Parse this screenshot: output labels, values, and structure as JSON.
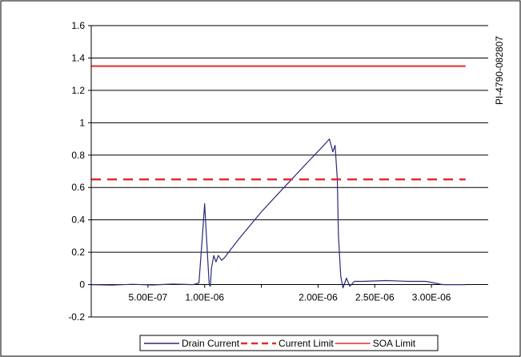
{
  "chart_data": {
    "type": "line",
    "title": "",
    "xlabel": "",
    "ylabel": "",
    "figure_id": "PI-4790-082807",
    "xlim": [
      0,
      3.5e-06
    ],
    "ylim": [
      -0.2,
      1.6
    ],
    "yticks": [
      -0.2,
      0,
      0.2,
      0.4,
      0.6,
      0.8,
      1,
      1.2,
      1.4,
      1.6
    ],
    "ytick_labels": [
      "-0.2",
      "0",
      "0.2",
      "0.4",
      "0.6",
      "0.8",
      "1",
      "1.2",
      "1.4",
      "1.6"
    ],
    "xticks": [
      5e-07,
      1e-06,
      1.5e-06,
      2e-06,
      2.5e-06,
      3e-06
    ],
    "xtick_labels": [
      "5.00E-07",
      "1.00E-06",
      "",
      "2.00E-06",
      "2.50E-06",
      "3.00E-06"
    ],
    "grid": "horizontal",
    "legend_position": "bottom",
    "series": [
      {
        "name": "Drain Current",
        "style": "solid",
        "color": "#2a2a7a",
        "x": [
          0,
          1.8e-07,
          3.6e-07,
          5.4e-07,
          7.2e-07,
          9e-07,
          9.5e-07,
          9.8e-07,
          1e-06,
          1.02e-06,
          1.04e-06,
          1.05e-06,
          1.06e-06,
          1.08e-06,
          1.1e-06,
          1.12e-06,
          1.15e-06,
          1.18e-06,
          1.2e-06,
          1.3e-06,
          1.5e-06,
          1.7e-06,
          1.9e-06,
          2.05e-06,
          2.1e-06,
          2.13e-06,
          2.15e-06,
          2.17e-06,
          2.18e-06,
          2.2e-06,
          2.22e-06,
          2.25e-06,
          2.28e-06,
          2.32e-06,
          2.4e-06,
          2.6e-06,
          2.8e-06,
          2.95e-06,
          3.1e-06,
          3.3e-06
        ],
        "y": [
          0.0,
          -0.003,
          0.002,
          -0.002,
          0.003,
          0.0,
          0.01,
          0.3,
          0.5,
          0.25,
          0.0,
          -0.01,
          0.1,
          0.18,
          0.14,
          0.18,
          0.15,
          0.17,
          0.19,
          0.28,
          0.45,
          0.6,
          0.75,
          0.86,
          0.9,
          0.82,
          0.86,
          0.65,
          0.3,
          0.05,
          -0.02,
          0.04,
          -0.01,
          0.02,
          0.02,
          0.025,
          0.02,
          0.02,
          0.0,
          0.0
        ]
      },
      {
        "name": "Current Limit",
        "style": "dashed",
        "color": "#e32b2b",
        "x": [
          0,
          3.3e-06
        ],
        "y": [
          0.65,
          0.65
        ]
      },
      {
        "name": "SOA Limit",
        "style": "solid",
        "color": "#e32b2b",
        "x": [
          0,
          3.3e-06
        ],
        "y": [
          1.35,
          1.35
        ]
      }
    ]
  }
}
